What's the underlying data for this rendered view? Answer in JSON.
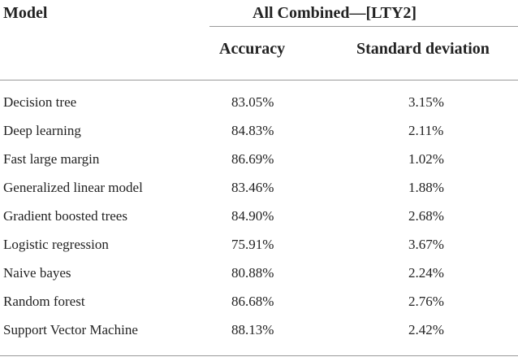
{
  "table": {
    "header": {
      "model": "Model",
      "group": "All Combined—[LTY2]",
      "accuracy": "Accuracy",
      "std": "Standard deviation"
    },
    "rows": [
      {
        "model": "Decision tree",
        "accuracy": "83.05%",
        "std": "3.15%"
      },
      {
        "model": "Deep learning",
        "accuracy": "84.83%",
        "std": "2.11%"
      },
      {
        "model": "Fast large margin",
        "accuracy": "86.69%",
        "std": "1.02%"
      },
      {
        "model": "Generalized linear model",
        "accuracy": "83.46%",
        "std": "1.88%"
      },
      {
        "model": "Gradient boosted trees",
        "accuracy": "84.90%",
        "std": "2.68%"
      },
      {
        "model": "Logistic regression",
        "accuracy": "75.91%",
        "std": "3.67%"
      },
      {
        "model": "Naive bayes",
        "accuracy": "80.88%",
        "std": "2.24%"
      },
      {
        "model": "Random forest",
        "accuracy": "86.68%",
        "std": "2.76%"
      },
      {
        "model": "Support Vector Machine",
        "accuracy": "88.13%",
        "std": "2.42%"
      }
    ]
  }
}
